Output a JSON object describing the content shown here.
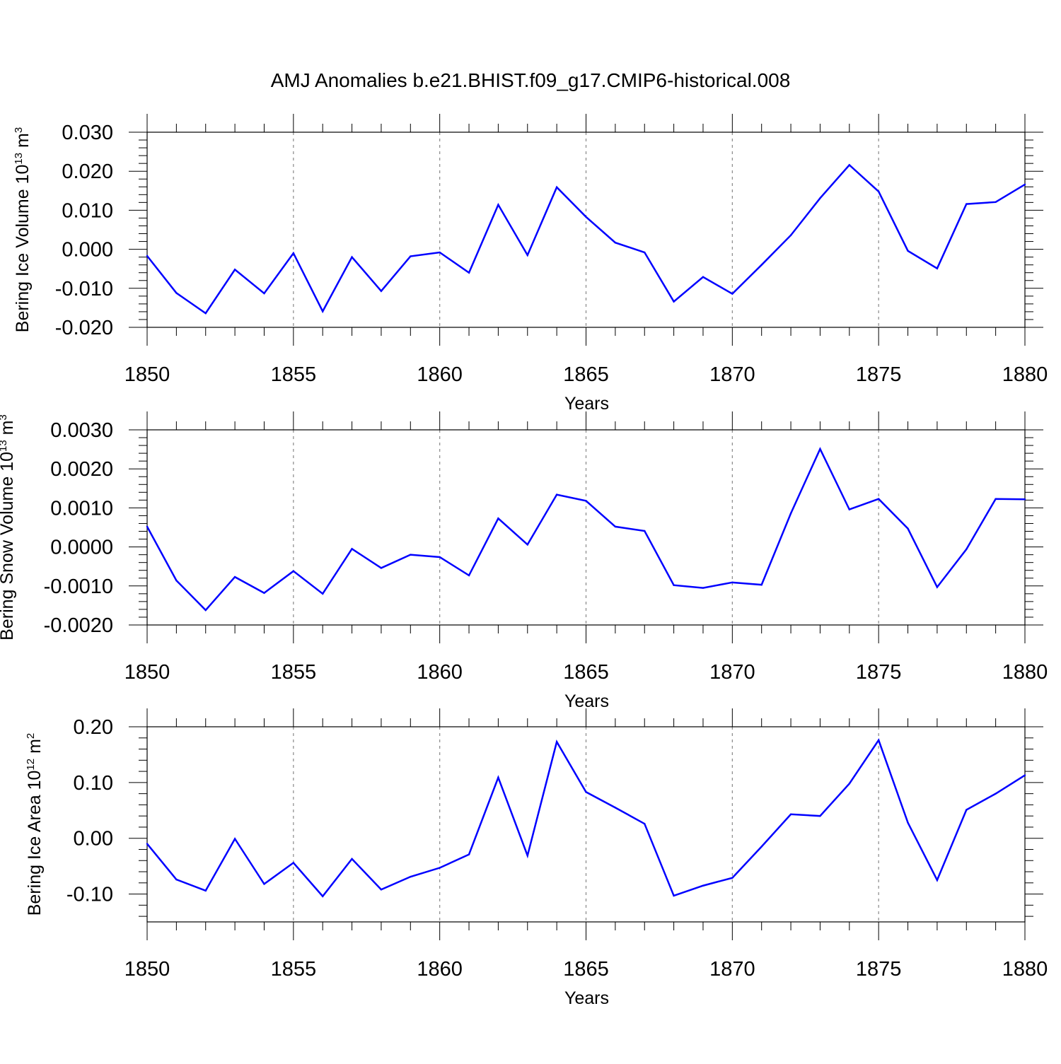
{
  "title": "AMJ Anomalies b.e21.BHIST.f09_g17.CMIP6-historical.008",
  "colors": {
    "series": "#0000ff",
    "axis": "#000000",
    "grid": "#888888"
  },
  "chart_data": [
    {
      "type": "line",
      "ylabel": {
        "main": "Bering Ice Volume 10",
        "exponent": "13",
        "unit": " m",
        "unit_exponent": "3"
      },
      "xlabel": "Years",
      "xlim": [
        1850,
        1880
      ],
      "ylim": [
        -0.02,
        0.03
      ],
      "x_ticks": [
        "1850",
        "1855",
        "1860",
        "1865",
        "1870",
        "1875",
        "1880"
      ],
      "y_ticks": [
        "0.030",
        "0.020",
        "0.010",
        "0.000",
        "-0.010",
        "-0.020"
      ],
      "grid": "vertical dashed at major x ticks",
      "x": [
        1850,
        1851,
        1852,
        1853,
        1854,
        1855,
        1856,
        1857,
        1858,
        1859,
        1860,
        1861,
        1862,
        1863,
        1864,
        1865,
        1866,
        1867,
        1868,
        1869,
        1870,
        1871,
        1872,
        1873,
        1874,
        1875,
        1876,
        1877,
        1878,
        1879,
        1880
      ],
      "series": [
        {
          "color": "#0000ff",
          "values": [
            -0.0017,
            -0.0112,
            -0.0164,
            -0.0052,
            -0.0113,
            -0.001,
            -0.0159,
            -0.002,
            -0.0107,
            -0.0018,
            -0.0008,
            -0.006,
            0.0114,
            -0.0015,
            0.0159,
            0.0083,
            0.0017,
            -0.0008,
            -0.0134,
            -0.0071,
            -0.0114,
            -0.004,
            0.0036,
            0.0131,
            0.0216,
            0.0148,
            -0.0004,
            -0.0049,
            0.0116,
            0.0121,
            0.0166
          ]
        }
      ]
    },
    {
      "type": "line",
      "ylabel": {
        "main": "Bering Snow Volume 10",
        "exponent": "13",
        "unit": " m",
        "unit_exponent": "3"
      },
      "xlabel": "Years",
      "xlim": [
        1850,
        1880
      ],
      "ylim": [
        -0.002,
        0.003
      ],
      "x_ticks": [
        "1850",
        "1855",
        "1860",
        "1865",
        "1870",
        "1875",
        "1880"
      ],
      "y_ticks": [
        "0.0030",
        "0.0020",
        "0.0010",
        "0.0000",
        "-0.0010",
        "-0.0020"
      ],
      "grid": "vertical dashed at major x ticks",
      "x": [
        1850,
        1851,
        1852,
        1853,
        1854,
        1855,
        1856,
        1857,
        1858,
        1859,
        1860,
        1861,
        1862,
        1863,
        1864,
        1865,
        1866,
        1867,
        1868,
        1869,
        1870,
        1871,
        1872,
        1873,
        1874,
        1875,
        1876,
        1877,
        1878,
        1879,
        1880
      ],
      "series": [
        {
          "color": "#0000ff",
          "values": [
            0.00052,
            -0.00086,
            -0.00162,
            -0.00077,
            -0.00118,
            -0.00062,
            -0.0012,
            -5e-05,
            -0.00054,
            -0.0002,
            -0.00026,
            -0.00073,
            0.00073,
            6e-05,
            0.00134,
            0.00118,
            0.00052,
            0.00041,
            -0.00098,
            -0.00105,
            -0.00091,
            -0.00097,
            0.00086,
            0.00251,
            0.00096,
            0.00123,
            0.00047,
            -0.00103,
            -6e-05,
            0.00123,
            0.00122
          ]
        }
      ]
    },
    {
      "type": "line",
      "ylabel": {
        "main": "Bering Ice Area 10",
        "exponent": "12",
        "unit": " m",
        "unit_exponent": "2"
      },
      "xlabel": "Years",
      "xlim": [
        1850,
        1880
      ],
      "ylim": [
        -0.15,
        0.2
      ],
      "x_ticks": [
        "1850",
        "1855",
        "1860",
        "1865",
        "1870",
        "1875",
        "1880"
      ],
      "y_ticks": [
        "0.20",
        "0.10",
        "0.00",
        "-0.10"
      ],
      "grid": "vertical dashed at major x ticks",
      "x": [
        1850,
        1851,
        1852,
        1853,
        1854,
        1855,
        1856,
        1857,
        1858,
        1859,
        1860,
        1861,
        1862,
        1863,
        1864,
        1865,
        1866,
        1867,
        1868,
        1869,
        1870,
        1871,
        1872,
        1873,
        1874,
        1875,
        1876,
        1877,
        1878,
        1879,
        1880
      ],
      "series": [
        {
          "color": "#0000ff",
          "values": [
            -0.01,
            -0.074,
            -0.094,
            -0.001,
            -0.082,
            -0.044,
            -0.104,
            -0.037,
            -0.092,
            -0.069,
            -0.053,
            -0.029,
            0.109,
            -0.031,
            0.173,
            0.083,
            0.055,
            0.026,
            -0.103,
            -0.085,
            -0.071,
            -0.015,
            0.043,
            0.04,
            0.098,
            0.176,
            0.028,
            -0.075,
            0.051,
            0.08,
            0.113
          ]
        }
      ]
    }
  ]
}
